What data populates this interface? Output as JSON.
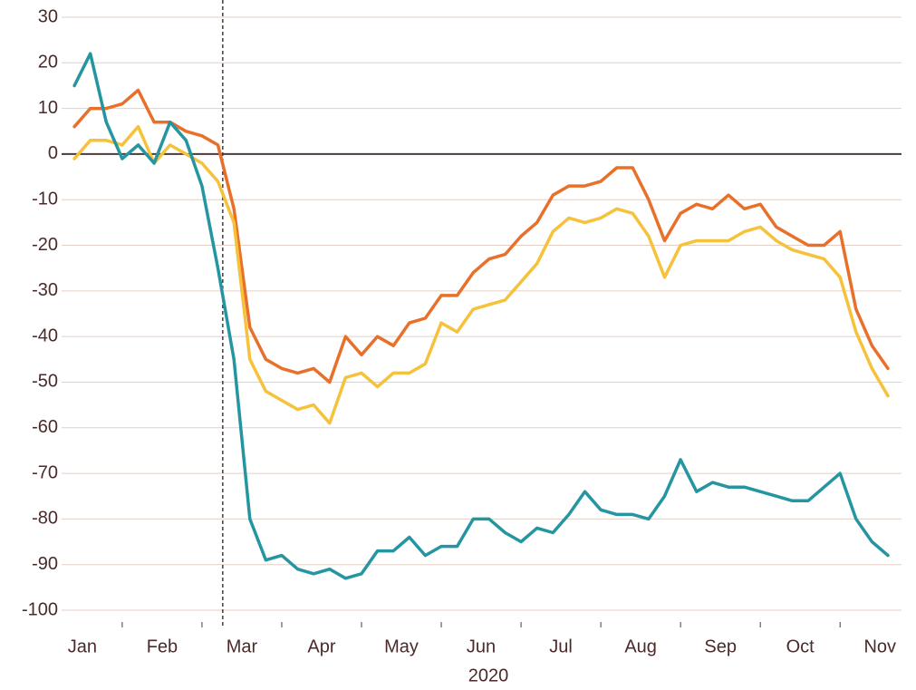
{
  "chart_data": {
    "type": "line",
    "x_label": "2020",
    "x": [
      0.4,
      0.6,
      0.8,
      1.0,
      1.2,
      1.4,
      1.6,
      1.8,
      2.0,
      2.2,
      2.4,
      2.6,
      2.8,
      3.0,
      3.2,
      3.4,
      3.6,
      3.8,
      4.0,
      4.2,
      4.4,
      4.6,
      4.8,
      5.0,
      5.2,
      5.4,
      5.6,
      5.8,
      6.0,
      6.2,
      6.4,
      6.6,
      6.8,
      7.0,
      7.2,
      7.4,
      7.6,
      7.8,
      8.0,
      8.2,
      8.4,
      8.6,
      8.8,
      9.0,
      9.2,
      9.4,
      9.6,
      9.8,
      10.0,
      10.2,
      10.4,
      10.6
    ],
    "series": [
      {
        "color": "#e8702a",
        "values": [
          6,
          10,
          10,
          11,
          14,
          7,
          7,
          5,
          4,
          2,
          -12,
          -38,
          -45,
          -47,
          -48,
          -47,
          -50,
          -40,
          -44,
          -40,
          -42,
          -37,
          -36,
          -31,
          -31,
          -26,
          -23,
          -22,
          -18,
          -15,
          -9,
          -7,
          -7,
          -6,
          -3,
          -3,
          -10,
          -19,
          -13,
          -11,
          -12,
          -9,
          -12,
          -11,
          -16,
          -18,
          -20,
          -20,
          -17,
          -34,
          -42,
          -47
        ]
      },
      {
        "color": "#f6c13b",
        "values": [
          -1,
          3,
          3,
          2,
          6,
          -2,
          2,
          0,
          -2,
          -6,
          -15,
          -45,
          -52,
          -54,
          -56,
          -55,
          -59,
          -49,
          -48,
          -51,
          -48,
          -48,
          -46,
          -37,
          -39,
          -34,
          -33,
          -32,
          -28,
          -24,
          -17,
          -14,
          -15,
          -14,
          -12,
          -13,
          -18,
          -27,
          -20,
          -19,
          -19,
          -19,
          -17,
          -16,
          -19,
          -21,
          -22,
          -23,
          -27,
          -39,
          -47,
          -53
        ]
      },
      {
        "color": "#2596a1",
        "values": [
          15,
          22,
          7,
          -1,
          2,
          -2,
          7,
          3,
          -7,
          -25,
          -45,
          -80,
          -89,
          -88,
          -91,
          -92,
          -91,
          -93,
          -92,
          -87,
          -87,
          -84,
          -88,
          -86,
          -86,
          -80,
          -80,
          -83,
          -85,
          -82,
          -83,
          -79,
          -74,
          -78,
          -79,
          -79,
          -80,
          -75,
          -67,
          -74,
          -72,
          -73,
          -73,
          -74,
          -75,
          -76,
          -76,
          -73,
          -70,
          -80,
          -85,
          -88
        ]
      }
    ],
    "xlim": [
      0.24,
      10.77
    ],
    "xticks": [
      {
        "value": 0.5,
        "label": "Jan"
      },
      {
        "value": 1.5,
        "label": "Feb"
      },
      {
        "value": 2.5,
        "label": "Mar"
      },
      {
        "value": 3.5,
        "label": "Apr"
      },
      {
        "value": 4.5,
        "label": "May"
      },
      {
        "value": 5.5,
        "label": "Jun"
      },
      {
        "value": 6.5,
        "label": "Jul"
      },
      {
        "value": 7.5,
        "label": "Aug"
      },
      {
        "value": 8.5,
        "label": "Sep"
      },
      {
        "value": 9.5,
        "label": "Oct"
      },
      {
        "value": 10.5,
        "label": "Nov"
      }
    ],
    "ylim": [
      -100,
      30
    ],
    "yticks": [
      -100,
      -90,
      -80,
      -70,
      -60,
      -50,
      -40,
      -30,
      -20,
      -10,
      0,
      10,
      20,
      30
    ],
    "grid": true,
    "vline_x": 2.26
  }
}
